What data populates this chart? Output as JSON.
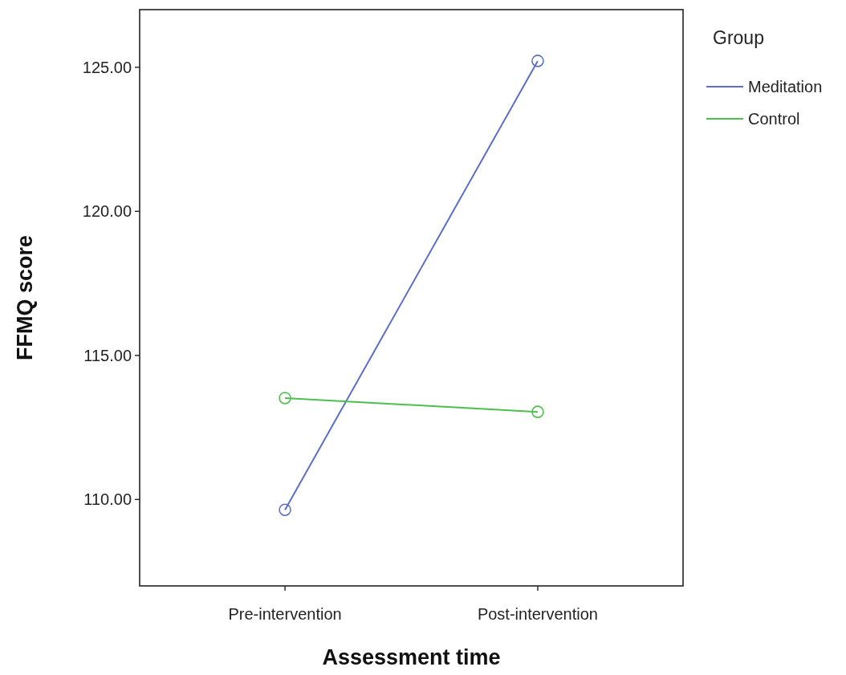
{
  "chart_data": {
    "type": "line",
    "xlabel": "Assessment time",
    "ylabel": "FFMQ score",
    "legend_title": "Group",
    "categories": [
      "Pre-intervention",
      "Post-intervention"
    ],
    "series": [
      {
        "name": "Meditation",
        "color": "#5b6fca",
        "values": [
          109.64,
          125.22
        ]
      },
      {
        "name": "Control",
        "color": "#4cbf4c",
        "values": [
          113.52,
          113.04
        ]
      }
    ],
    "ylim": [
      107,
      127
    ],
    "yticks": [
      {
        "value": 110,
        "label": "110.00"
      },
      {
        "value": 115,
        "label": "115.00"
      },
      {
        "value": 120,
        "label": "120.00"
      },
      {
        "value": 125,
        "label": "125.00"
      }
    ],
    "grid": false,
    "legend": "top right",
    "marker": "circle",
    "line_style": "solid"
  }
}
